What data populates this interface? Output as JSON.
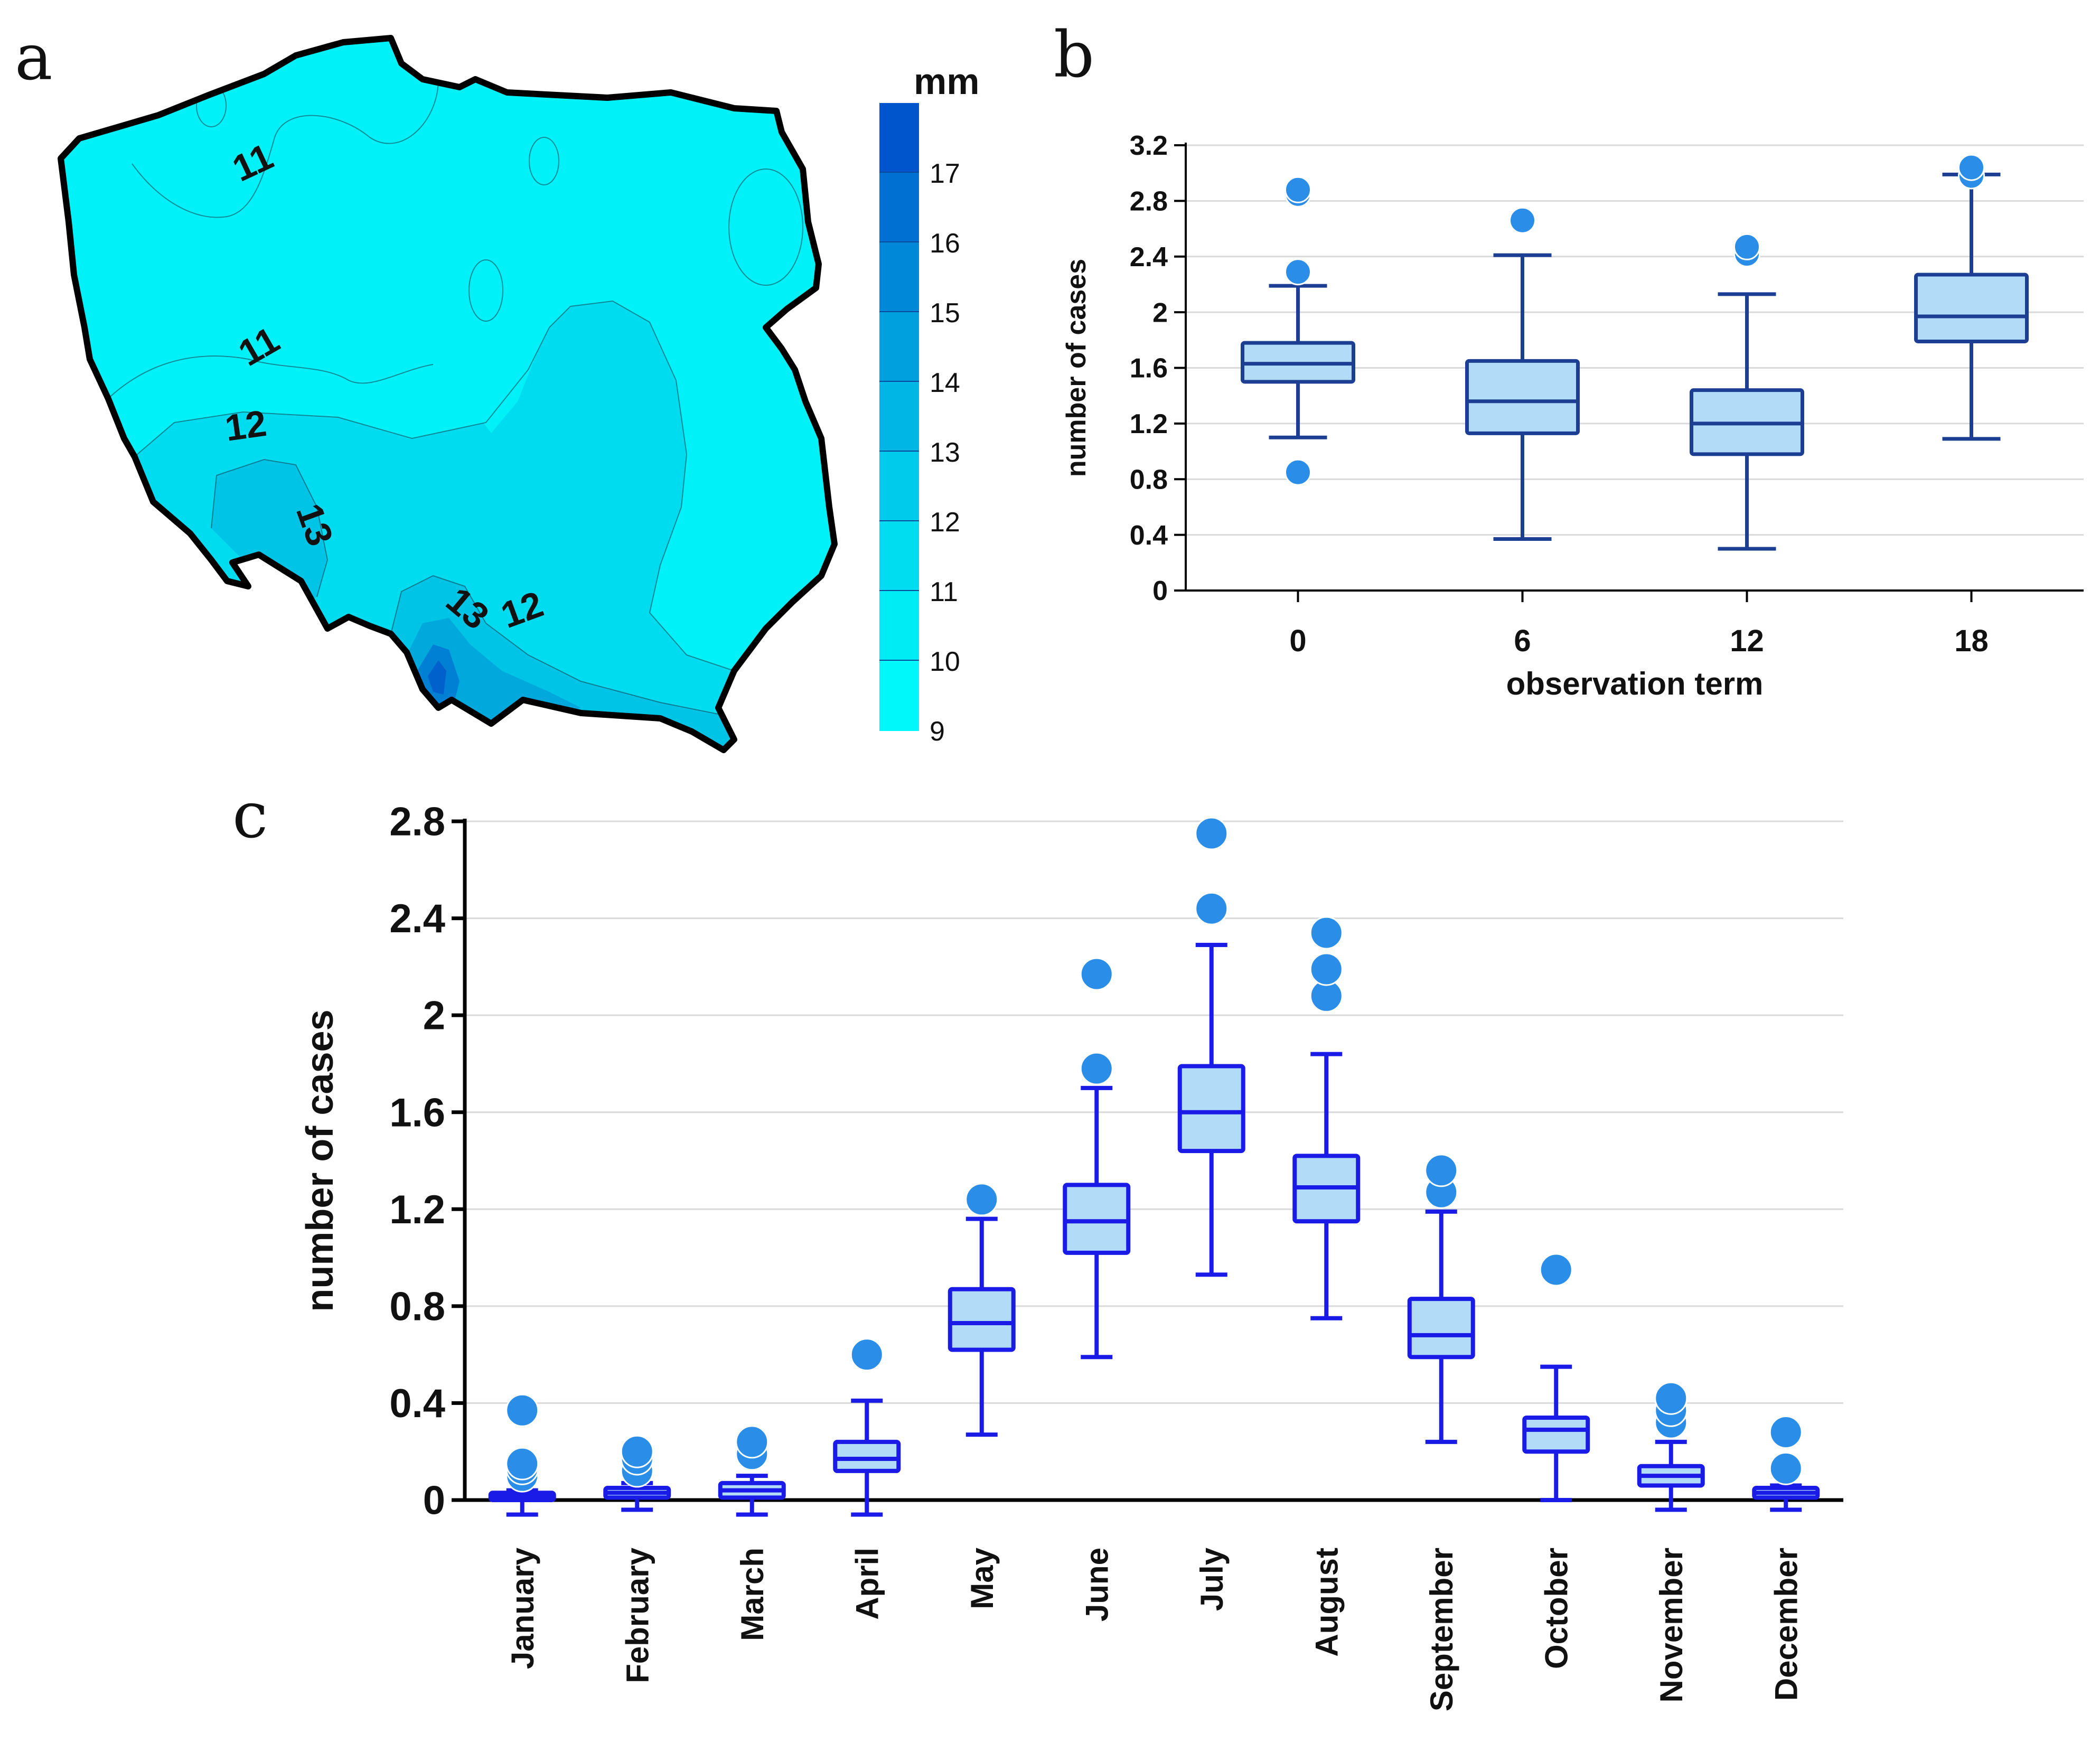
{
  "panels": {
    "a": {
      "letter": "a"
    },
    "b": {
      "letter": "b"
    },
    "c": {
      "letter": "c"
    }
  },
  "map": {
    "contour_labels": [
      "11",
      "11",
      "12",
      "13",
      "13",
      "12"
    ],
    "colors": {
      "border": "#000000",
      "base": "#00f2f8",
      "band12": "#00dcef",
      "band13": "#00c4e6",
      "band14": "#00a8dc",
      "band16": "#0080d4",
      "band17": "#0060cc"
    },
    "colorbar": {
      "unit": "mm",
      "labels": [
        "17",
        "16",
        "15",
        "14",
        "13",
        "12",
        "11",
        "10",
        "9"
      ],
      "colors": [
        "#0055cc",
        "#0070d2",
        "#0088d8",
        "#00a0de",
        "#00b6e4",
        "#00cbea",
        "#00ddf0",
        "#00ecf5",
        "#00f8fb"
      ]
    }
  },
  "chart_data": [
    {
      "panel": "b",
      "type": "box",
      "title": "",
      "xlabel": "observation term",
      "ylabel": "number of cases",
      "ylim": [
        0,
        3.2
      ],
      "yticks": [
        "0",
        "0.4",
        "0.8",
        "1.2",
        "1.6",
        "2",
        "2.4",
        "2.8",
        "3.2"
      ],
      "grid": true,
      "categories": [
        "0",
        "6",
        "12",
        "18"
      ],
      "boxes": [
        {
          "min": 1.1,
          "q1": 1.5,
          "median": 1.63,
          "q3": 1.78,
          "max": 2.19,
          "outliers": [
            0.85,
            2.29,
            2.85,
            2.88
          ]
        },
        {
          "min": 0.37,
          "q1": 1.13,
          "median": 1.36,
          "q3": 1.65,
          "max": 2.41,
          "outliers": [
            2.66
          ]
        },
        {
          "min": 0.3,
          "q1": 0.98,
          "median": 1.2,
          "q3": 1.44,
          "max": 2.13,
          "outliers": [
            2.42,
            2.47
          ]
        },
        {
          "min": 1.09,
          "q1": 1.79,
          "median": 1.97,
          "q3": 2.27,
          "max": 2.99,
          "outliers": [
            2.98,
            3.04
          ]
        }
      ],
      "colors": {
        "box_fill": "#b2dbf8",
        "box_line": "#1c3f94",
        "outlier": "#2a8ee8",
        "grid": "#d9d9d9",
        "axis": "#000000"
      }
    },
    {
      "panel": "c",
      "type": "box",
      "title": "",
      "xlabel": "",
      "ylabel": "number of cases",
      "ylim": [
        0,
        2.8
      ],
      "yticks": [
        "0",
        "0.4",
        "0.8",
        "1.2",
        "1.6",
        "2",
        "2.4",
        "2.8"
      ],
      "grid": true,
      "categories": [
        "January",
        "February",
        "March",
        "April",
        "May",
        "June",
        "July",
        "August",
        "September",
        "October",
        "November",
        "December"
      ],
      "boxes": [
        {
          "min": -0.06,
          "q1": 0.0,
          "median": 0.015,
          "q3": 0.03,
          "max": 0.04,
          "outliers": [
            0.1,
            0.13,
            0.15,
            0.37
          ]
        },
        {
          "min": -0.04,
          "q1": 0.01,
          "median": 0.03,
          "q3": 0.05,
          "max": 0.07,
          "outliers": [
            0.12,
            0.17,
            0.2
          ]
        },
        {
          "min": -0.06,
          "q1": 0.01,
          "median": 0.04,
          "q3": 0.07,
          "max": 0.1,
          "outliers": [
            0.19,
            0.24
          ]
        },
        {
          "min": -0.06,
          "q1": 0.12,
          "median": 0.17,
          "q3": 0.24,
          "max": 0.41,
          "outliers": [
            0.6
          ]
        },
        {
          "min": 0.27,
          "q1": 0.62,
          "median": 0.73,
          "q3": 0.87,
          "max": 1.16,
          "outliers": [
            1.24
          ]
        },
        {
          "min": 0.59,
          "q1": 1.02,
          "median": 1.15,
          "q3": 1.3,
          "max": 1.7,
          "outliers": [
            1.78,
            2.17
          ]
        },
        {
          "min": 0.93,
          "q1": 1.44,
          "median": 1.6,
          "q3": 1.79,
          "max": 2.29,
          "outliers": [
            2.44,
            2.75
          ]
        },
        {
          "min": 0.75,
          "q1": 1.15,
          "median": 1.29,
          "q3": 1.42,
          "max": 1.84,
          "outliers": [
            2.08,
            2.19,
            2.34
          ]
        },
        {
          "min": 0.24,
          "q1": 0.59,
          "median": 0.68,
          "q3": 0.83,
          "max": 1.19,
          "outliers": [
            1.27,
            1.36
          ]
        },
        {
          "min": 0.0,
          "q1": 0.2,
          "median": 0.29,
          "q3": 0.34,
          "max": 0.55,
          "outliers": [
            0.95
          ]
        },
        {
          "min": -0.04,
          "q1": 0.06,
          "median": 0.1,
          "q3": 0.14,
          "max": 0.24,
          "outliers": [
            0.32,
            0.37,
            0.42
          ]
        },
        {
          "min": -0.04,
          "q1": 0.01,
          "median": 0.03,
          "q3": 0.05,
          "max": 0.06,
          "outliers": [
            0.13,
            0.28
          ]
        }
      ],
      "colors": {
        "box_fill": "#b2dbf8",
        "box_line": "#1b1be8",
        "outlier": "#2a8ee8",
        "grid": "#d9d9d9",
        "axis": "#000000"
      }
    }
  ]
}
